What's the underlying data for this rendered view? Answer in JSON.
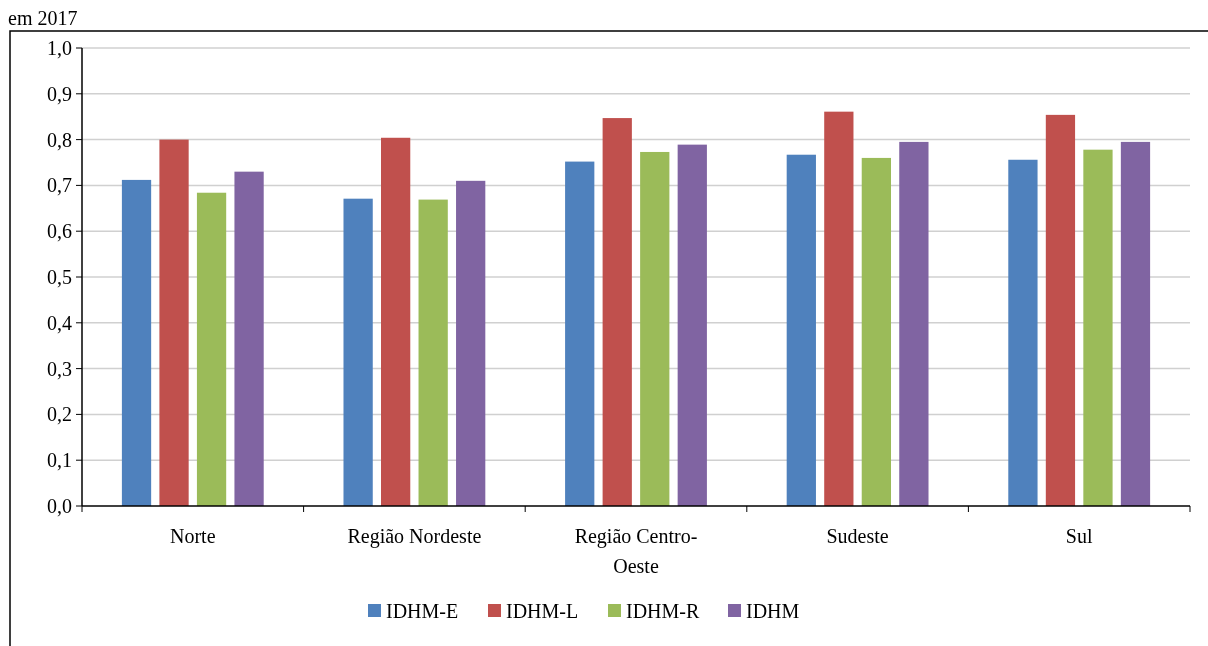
{
  "chart_data": {
    "type": "bar",
    "title": "em 2017",
    "categories": [
      "Norte",
      "Região Nordeste",
      "Região Centro-Oeste",
      "Sudeste",
      "Sul"
    ],
    "series": [
      {
        "name": "IDHM-E",
        "color": "#4f81bd",
        "values": [
          0.712,
          0.671,
          0.752,
          0.767,
          0.756
        ]
      },
      {
        "name": "IDHM-L",
        "color": "#c0504d",
        "values": [
          0.8,
          0.804,
          0.847,
          0.861,
          0.854
        ]
      },
      {
        "name": "IDHM-R",
        "color": "#9bbb59",
        "values": [
          0.684,
          0.669,
          0.773,
          0.76,
          0.778
        ]
      },
      {
        "name": "IDHM",
        "color": "#8064a2",
        "values": [
          0.73,
          0.71,
          0.789,
          0.795,
          0.795
        ]
      }
    ],
    "ylim": [
      0,
      1
    ],
    "yticks": [
      {
        "value": 0,
        "label": "0,0"
      },
      {
        "value": 0.1,
        "label": "0,1"
      },
      {
        "value": 0.2,
        "label": "0,2"
      },
      {
        "value": 0.3,
        "label": "0,3"
      },
      {
        "value": 0.4,
        "label": "0,4"
      },
      {
        "value": 0.5,
        "label": "0,5"
      },
      {
        "value": 0.6,
        "label": "0,6"
      },
      {
        "value": 0.7,
        "label": "0,7"
      },
      {
        "value": 0.8,
        "label": "0,8"
      },
      {
        "value": 0.9,
        "label": "0,9"
      },
      {
        "value": 1,
        "label": "1,0"
      }
    ],
    "grid": "y",
    "legend": "bottom"
  }
}
